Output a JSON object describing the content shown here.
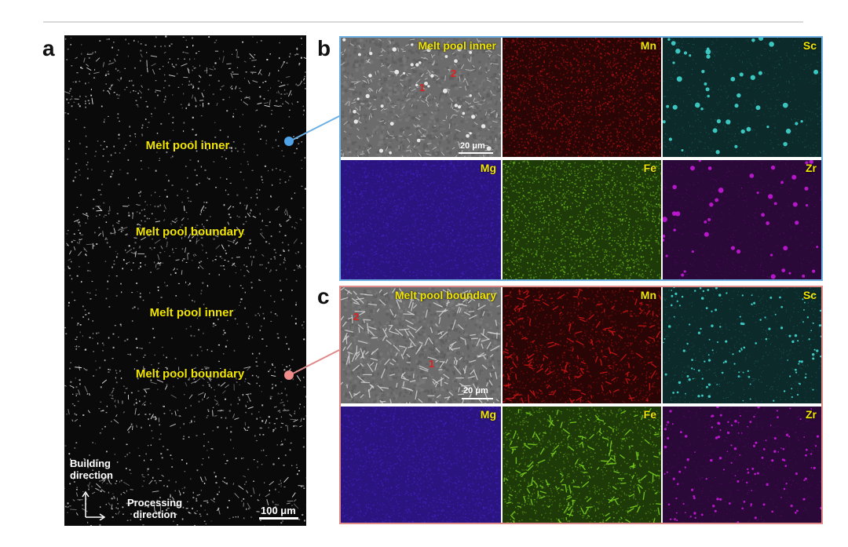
{
  "panels": {
    "a": {
      "letter": "a",
      "labels": [
        "Melt pool inner",
        "Melt pool boundary",
        "Melt pool inner",
        "Melt pool boundary"
      ],
      "axis_vertical": "Building direction",
      "axis_horizontal": "Processing direction",
      "scale_bar": "100 μm"
    },
    "b": {
      "letter": "b",
      "frame_color": "#6fb0e2",
      "sem_title": "Melt pool inner",
      "markers": [
        "1",
        "2"
      ],
      "scale_bar": "20 μm",
      "elements": [
        "Mn",
        "Sc",
        "Mg",
        "Fe",
        "Zr"
      ]
    },
    "c": {
      "letter": "c",
      "frame_color": "#e08a8a",
      "sem_title": "Melt pool boundary",
      "markers": [
        "2",
        "1"
      ],
      "scale_bar": "20 μm",
      "elements": [
        "Mn",
        "Sc",
        "Mg",
        "Fe",
        "Zr"
      ]
    }
  },
  "colors": {
    "label_yellow": "#f2e600",
    "marker_red": "#e02020",
    "Mn": "#c81414",
    "Sc": "#3fd6cf",
    "Mg": "#4a22c8",
    "Fe": "#7ad21e",
    "Zr": "#c41ad8"
  }
}
